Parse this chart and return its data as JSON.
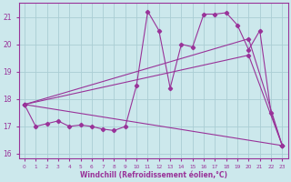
{
  "xlabel": "Windchill (Refroidissement éolien,°C)",
  "xlim": [
    -0.5,
    23.5
  ],
  "ylim": [
    15.85,
    21.5
  ],
  "yticks": [
    16,
    17,
    18,
    19,
    20,
    21
  ],
  "xticks": [
    0,
    1,
    2,
    3,
    4,
    5,
    6,
    7,
    8,
    9,
    10,
    11,
    12,
    13,
    14,
    15,
    16,
    17,
    18,
    19,
    20,
    21,
    22,
    23
  ],
  "bg_color": "#cce8ec",
  "line_color": "#993399",
  "grid_color": "#aacdd4",
  "curves": [
    {
      "x": [
        0,
        1,
        2,
        3,
        4,
        5,
        6,
        7,
        8,
        9,
        10,
        11,
        12,
        13,
        14,
        15,
        16,
        17,
        18,
        19,
        20,
        21,
        22,
        23
      ],
      "y": [
        17.8,
        17.0,
        17.1,
        17.2,
        17.0,
        17.05,
        17.0,
        16.9,
        16.85,
        17.0,
        18.5,
        21.2,
        20.5,
        18.4,
        20.0,
        19.9,
        21.1,
        21.1,
        21.15,
        20.7,
        19.8,
        20.5,
        17.5,
        16.3
      ]
    },
    {
      "x": [
        0,
        23
      ],
      "y": [
        17.8,
        16.3
      ]
    },
    {
      "x": [
        0,
        20,
        23
      ],
      "y": [
        17.8,
        19.6,
        16.3
      ]
    },
    {
      "x": [
        0,
        20,
        23
      ],
      "y": [
        17.8,
        20.2,
        16.3
      ]
    }
  ]
}
